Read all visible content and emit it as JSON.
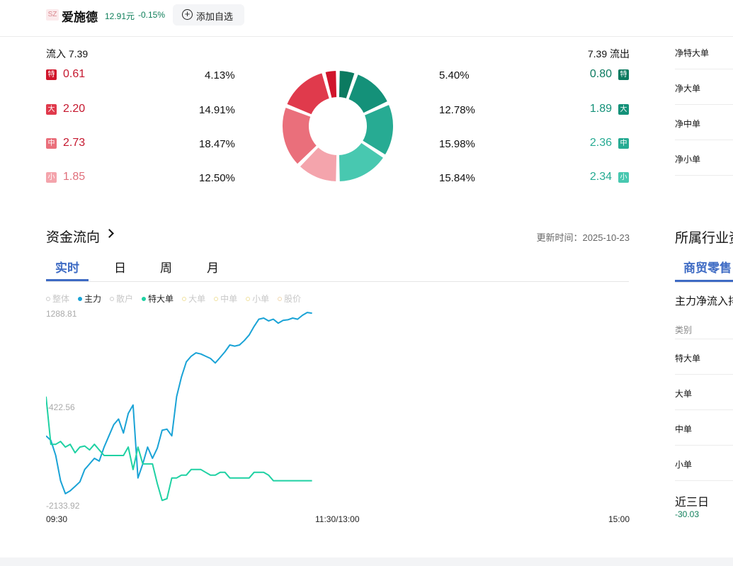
{
  "header": {
    "market": "SZ",
    "stock_name": "爱施德",
    "price": "12.91元",
    "change": "-0.15%",
    "add_label": "添加自选"
  },
  "flow": {
    "inflow_title": "流入 7.39",
    "outflow_title": "7.39 流出",
    "rows": [
      {
        "badge": "特",
        "in": "0.61",
        "in_pct": "4.13%",
        "out_pct": "5.40%",
        "out": "0.80"
      },
      {
        "badge": "大",
        "in": "2.20",
        "in_pct": "14.91%",
        "out_pct": "12.78%",
        "out": "1.89"
      },
      {
        "badge": "中",
        "in": "2.73",
        "in_pct": "18.47%",
        "out_pct": "15.98%",
        "out": "2.36"
      },
      {
        "badge": "小",
        "in": "1.85",
        "in_pct": "12.50%",
        "out_pct": "15.84%",
        "out": "2.34"
      }
    ],
    "in_colors": [
      "#d0152b",
      "#e03a4c",
      "#ea6f7b",
      "#f4a4ac"
    ],
    "out_colors": [
      "#0b7a60",
      "#149179",
      "#27ab93",
      "#48c8b0"
    ]
  },
  "right_panel": {
    "labels": [
      "净特大单",
      "净大单",
      "净中单",
      "净小单"
    ],
    "section_title": "所属行业资",
    "tab": "商贸零售",
    "sub_title": "主力净流入排",
    "col_header": "类别",
    "rows": [
      "特大单",
      "大单",
      "中单",
      "小单"
    ],
    "three_day_label": "近三日",
    "three_day_value": "-30.03"
  },
  "capital_flow": {
    "title": "资金流向",
    "update": "更新时间：2025-10-23",
    "tabs": [
      "实时",
      "日",
      "周",
      "月"
    ],
    "active_tab": 0,
    "legend": [
      {
        "label": "整体",
        "active": false,
        "color": "#cccccc"
      },
      {
        "label": "主力",
        "active": true,
        "color": "#1aa3d6"
      },
      {
        "label": "散户",
        "active": false,
        "color": "#cccccc"
      },
      {
        "label": "特大单",
        "active": true,
        "color": "#1fd1a3"
      },
      {
        "label": "大单",
        "active": false,
        "color": "#f0e2a0"
      },
      {
        "label": "中单",
        "active": false,
        "color": "#f0e2a0"
      },
      {
        "label": "小单",
        "active": false,
        "color": "#f0e2a0"
      },
      {
        "label": "股价",
        "active": false,
        "color": "#f0d8b0"
      }
    ]
  },
  "chart_data": {
    "type": "line",
    "y_ticks": [
      "1288.81",
      "-422.56",
      "-2133.92"
    ],
    "ylim": [
      -2133.92,
      1288.81
    ],
    "x_ticks": [
      "09:30",
      "11:30/13:00",
      "15:00"
    ],
    "x_domain": [
      0,
      241
    ],
    "series": [
      {
        "name": "主力",
        "color": "#1aa3d6",
        "x": [
          0,
          2,
          4,
          6,
          8,
          10,
          12,
          14,
          16,
          18,
          20,
          22,
          24,
          26,
          28,
          30,
          32,
          34,
          36,
          38,
          40,
          42,
          44,
          46,
          48,
          50,
          52,
          54,
          56,
          58,
          60,
          62,
          64,
          66,
          68,
          70,
          72,
          74,
          76,
          78,
          80,
          82,
          84,
          86,
          88,
          90,
          92,
          94,
          96,
          98,
          100,
          102,
          104,
          106,
          108,
          110
        ],
        "values": [
          -900,
          -980,
          -1250,
          -1700,
          -1930,
          -1880,
          -1800,
          -1720,
          -1500,
          -1400,
          -1300,
          -1350,
          -1100,
          -900,
          -700,
          -600,
          -850,
          -500,
          -350,
          -1650,
          -1400,
          -1100,
          -1300,
          -1120,
          -800,
          -780,
          -900,
          -200,
          150,
          420,
          520,
          580,
          560,
          520,
          480,
          400,
          500,
          600,
          720,
          700,
          720,
          800,
          900,
          1050,
          1180,
          1200,
          1150,
          1180,
          1110,
          1160,
          1170,
          1200,
          1180,
          1250,
          1300,
          1288
        ]
      },
      {
        "name": "特大单",
        "color": "#1fd1a3",
        "x": [
          0,
          2,
          4,
          6,
          8,
          10,
          12,
          14,
          16,
          18,
          20,
          22,
          24,
          26,
          28,
          30,
          32,
          34,
          36,
          38,
          40,
          42,
          44,
          46,
          48,
          50,
          52,
          54,
          56,
          58,
          60,
          62,
          64,
          66,
          68,
          70,
          72,
          74,
          76,
          78,
          80,
          82,
          84,
          86,
          88,
          90,
          92,
          94,
          96,
          98,
          100,
          102,
          104,
          106,
          108,
          110
        ],
        "values": [
          -200,
          -1050,
          -1050,
          -1000,
          -1100,
          -1050,
          -1200,
          -1100,
          -1080,
          -1150,
          -1050,
          -1150,
          -1250,
          -1250,
          -1250,
          -1250,
          -1250,
          -1100,
          -1500,
          -1100,
          -1400,
          -1400,
          -1400,
          -1750,
          -2050,
          -2020,
          -1650,
          -1650,
          -1600,
          -1600,
          -1500,
          -1500,
          -1500,
          -1550,
          -1600,
          -1600,
          -1550,
          -1550,
          -1650,
          -1650,
          -1650,
          -1650,
          -1650,
          -1550,
          -1550,
          -1550,
          -1600,
          -1700,
          -1700,
          -1700,
          -1700,
          -1700,
          -1700,
          -1700,
          -1700,
          -1700
        ]
      }
    ]
  }
}
